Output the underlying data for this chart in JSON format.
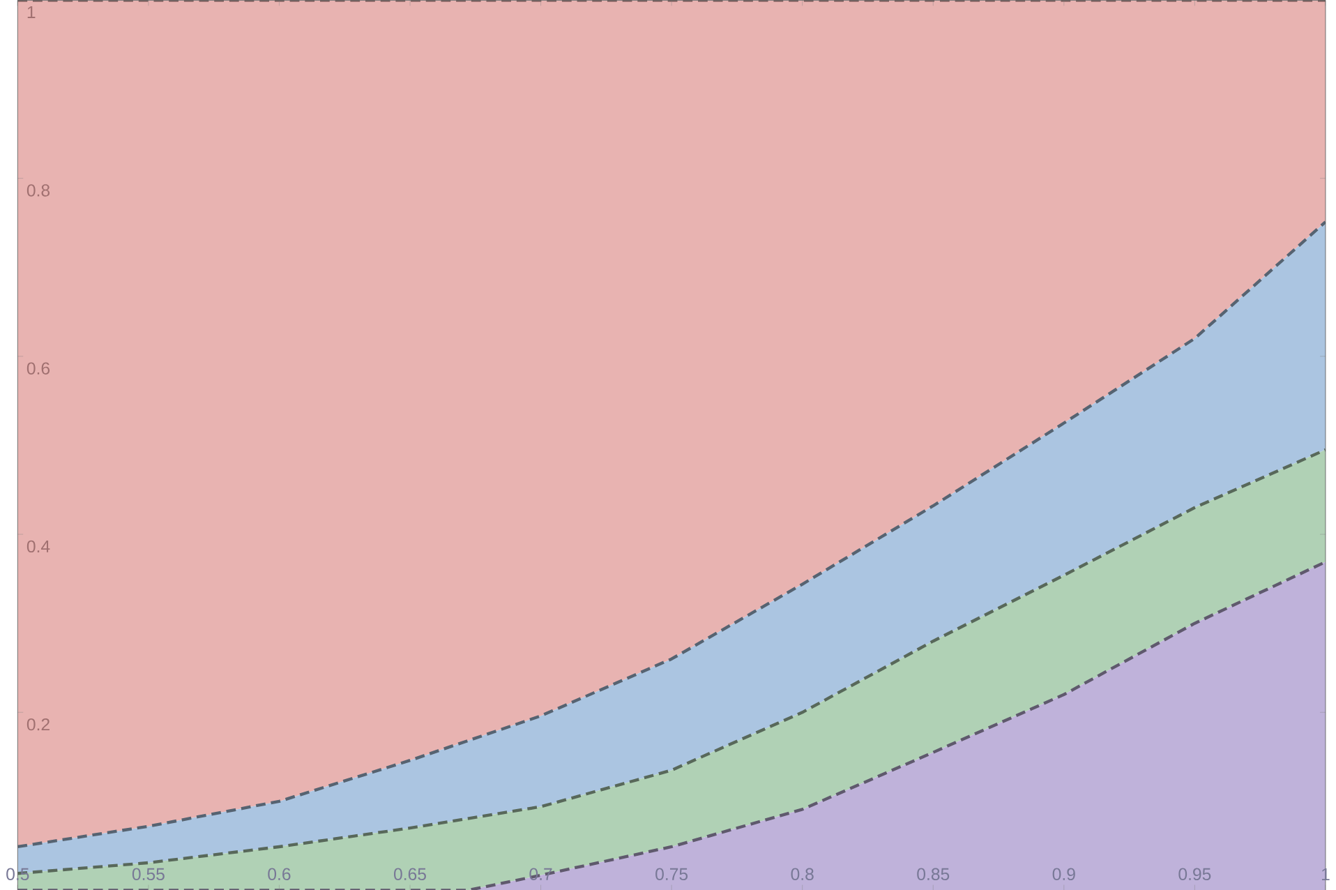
{
  "chart_data": {
    "type": "area",
    "x": [
      0.5,
      0.55,
      0.6,
      0.65,
      0.7,
      0.75,
      0.8,
      0.85,
      0.9,
      0.95,
      1
    ],
    "series": [
      {
        "color": "#e8b3b1",
        "values": [
          1,
          1,
          1,
          1,
          1,
          1,
          1,
          1,
          1,
          1,
          1
        ]
      },
      {
        "color": "#abc5e1",
        "values": [
          0.049,
          0.072,
          0.1,
          0.146,
          0.196,
          0.26,
          0.344,
          0.432,
          0.525,
          0.62,
          0.751
        ]
      },
      {
        "color": "#b0d1b5",
        "values": [
          0.019,
          0.031,
          0.049,
          0.07,
          0.094,
          0.135,
          0.2,
          0.28,
          0.354,
          0.43,
          0.495
        ]
      },
      {
        "color": "#bfb2da",
        "x": [
          0.5,
          0.6,
          0.672,
          0.7,
          0.75,
          0.8,
          0.85,
          0.9,
          0.95,
          1
        ],
        "values": [
          0,
          0,
          0,
          0.017,
          0.049,
          0.091,
          0.155,
          0.22,
          0.3,
          0.369
        ]
      }
    ],
    "line_style": "dashed",
    "xlim": [
      0.5,
      1
    ],
    "ylim": [
      0,
      1
    ],
    "xticks": [
      0.5,
      0.55,
      0.6,
      0.65,
      0.7,
      0.75,
      0.8,
      0.85,
      0.9,
      0.95,
      1
    ],
    "yticks": [
      0.2,
      0.4,
      0.6,
      0.8,
      1
    ]
  }
}
